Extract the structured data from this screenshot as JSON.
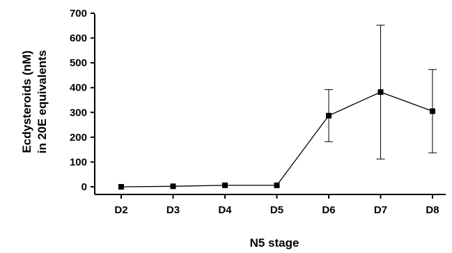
{
  "chart_data": {
    "type": "line",
    "title": "",
    "xlabel": "N5 stage",
    "ylabel_lines": [
      "Ecdysteroids (nM)",
      "in 20E equivalents"
    ],
    "categories": [
      "D2",
      "D3",
      "D4",
      "D5",
      "D6",
      "D7",
      "D8"
    ],
    "series": [
      {
        "values": [
          0,
          2,
          6,
          6,
          287,
          382,
          305
        ],
        "error": [
          0,
          0,
          0,
          0,
          105,
          270,
          168
        ]
      }
    ],
    "ylim": [
      0,
      700
    ],
    "yticks": [
      0,
      100,
      200,
      300,
      400,
      500,
      600,
      700
    ],
    "grid": false,
    "colors": {
      "line": "#000000",
      "marker": "#000000"
    }
  }
}
